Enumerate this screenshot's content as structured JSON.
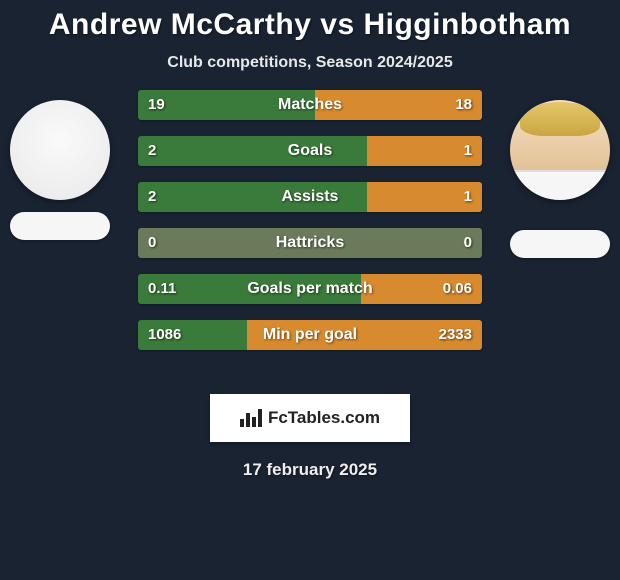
{
  "title": "Andrew McCarthy vs Higginbotham",
  "subtitle": "Club competitions, Season 2024/2025",
  "date": "17 february 2025",
  "brand": "FcTables.com",
  "colors": {
    "left": "#3a7a3a",
    "right": "#d88a2e",
    "neutral": "#6a7a5a",
    "row_shadow": "#0d1520"
  },
  "player_left": {
    "has_photo": false
  },
  "player_right": {
    "has_photo": true
  },
  "rows": [
    {
      "label": "Matches",
      "left_val": "19",
      "right_val": "18",
      "left_pct": 51.4,
      "right_pct": 48.6,
      "mode": "split"
    },
    {
      "label": "Goals",
      "left_val": "2",
      "right_val": "1",
      "left_pct": 66.7,
      "right_pct": 33.3,
      "mode": "split"
    },
    {
      "label": "Assists",
      "left_val": "2",
      "right_val": "1",
      "left_pct": 66.7,
      "right_pct": 33.3,
      "mode": "split"
    },
    {
      "label": "Hattricks",
      "left_val": "0",
      "right_val": "0",
      "left_pct": 50.0,
      "right_pct": 50.0,
      "mode": "neutral"
    },
    {
      "label": "Goals per match",
      "left_val": "0.11",
      "right_val": "0.06",
      "left_pct": 64.7,
      "right_pct": 35.3,
      "mode": "split"
    },
    {
      "label": "Min per goal",
      "left_val": "1086",
      "right_val": "2333",
      "left_pct": 31.8,
      "right_pct": 68.2,
      "mode": "split"
    }
  ]
}
